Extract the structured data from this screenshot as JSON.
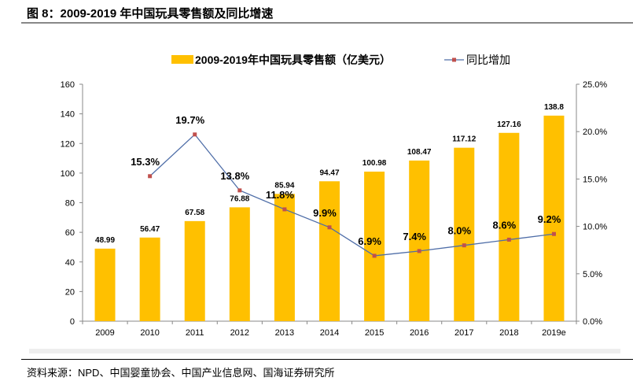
{
  "title": "图 8：2009-2019 年中国玩具零售额及同比增速",
  "source": "资料来源：NPD、中国婴童协会、中国产业信息网、国海证券研究所",
  "chart_data": {
    "type": "bar+line",
    "categories": [
      "2009",
      "2010",
      "2011",
      "2012",
      "2013",
      "2014",
      "2015",
      "2016",
      "2017",
      "2018",
      "2019e"
    ],
    "series": [
      {
        "name": "2009-2019年中国玩具零售额（亿美元）",
        "type": "bar",
        "axis": "left",
        "color": "#FFC000",
        "values": [
          48.99,
          56.47,
          67.58,
          76.88,
          85.94,
          94.47,
          100.98,
          108.47,
          117.12,
          127.16,
          138.8
        ],
        "labels": [
          "48.99",
          "56.47",
          "67.58",
          "76.88",
          "85.94",
          "94.47",
          "100.98",
          "108.47",
          "117.12",
          "127.16",
          "138.8"
        ]
      },
      {
        "name": "同比增加",
        "type": "line",
        "axis": "right",
        "color": "#4F6EA8",
        "marker_color": "#C0504D",
        "values": [
          null,
          15.3,
          19.7,
          13.8,
          11.8,
          9.9,
          6.9,
          7.4,
          8.0,
          8.6,
          9.2
        ],
        "labels": [
          "",
          "15.3%",
          "19.7%",
          "13.8%",
          "11.8%",
          "9.9%",
          "6.9%",
          "7.4%",
          "8.0%",
          "8.6%",
          "9.2%"
        ]
      }
    ],
    "y_left": {
      "range": [
        0,
        160
      ],
      "ticks": [
        "0",
        "20",
        "40",
        "60",
        "80",
        "100",
        "120",
        "140",
        "160"
      ]
    },
    "y_right": {
      "range": [
        0,
        25
      ],
      "ticks": [
        "0.0%",
        "5.0%",
        "10.0%",
        "15.0%",
        "20.0%",
        "25.0%"
      ]
    },
    "grid": false,
    "legend": "top"
  }
}
